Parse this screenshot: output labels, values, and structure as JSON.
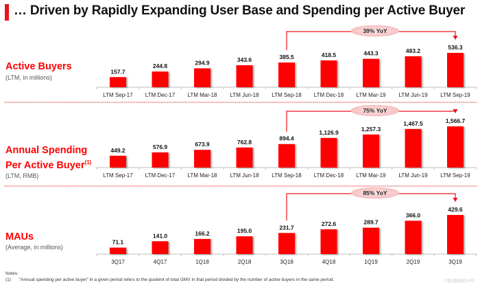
{
  "title": "… Driven by Rapidly Expanding User Base and Spending per Active Buyer",
  "chart_data": [
    {
      "type": "bar",
      "id": "active-buyers",
      "title": "Active Buyers",
      "subtitle": "(LTM, in millions)",
      "categories": [
        "LTM Sep-17",
        "LTM Dec-17",
        "LTM Mar-18",
        "LTM Jun-18",
        "LTM Sep-18",
        "LTM Dec-18",
        "LTM Mar-19",
        "LTM Jun-19",
        "LTM Sep-19"
      ],
      "values": [
        157.7,
        244.8,
        294.9,
        343.6,
        385.5,
        418.5,
        443.3,
        483.2,
        536.3
      ],
      "labels": [
        "157.7",
        "244.8",
        "294.9",
        "343.6",
        "385.5",
        "418.5",
        "443.3",
        "483.2",
        "536.3"
      ],
      "annotation": {
        "text": "39% YoY",
        "from": "LTM Sep-18",
        "to": "LTM Sep-19"
      },
      "bar_color": "#ff0000",
      "grid": false
    },
    {
      "type": "bar",
      "id": "annual-spending",
      "title": "Annual Spending Per Active Buyer",
      "title_line1": "Annual Spending",
      "title_line2": "Per Active Buyer",
      "footnote_mark": "(1)",
      "subtitle": "(LTM, RMB)",
      "categories": [
        "LTM Sep-17",
        "LTM Dec-17",
        "LTM Mar-18",
        "LTM Jun-18",
        "LTM Sep-18",
        "LTM Dec-18",
        "LTM Mar-19",
        "LTM Jun-19",
        "LTM Sep-19"
      ],
      "values": [
        449.2,
        576.9,
        673.9,
        762.8,
        894.4,
        1126.9,
        1257.3,
        1467.5,
        1566.7
      ],
      "labels": [
        "449.2",
        "576.9",
        "673.9",
        "762.8",
        "894.4",
        "1,126.9",
        "1,257.3",
        "1,467.5",
        "1,566.7"
      ],
      "annotation": {
        "text": "75% YoY",
        "from": "LTM Sep-18",
        "to": "LTM Sep-19"
      },
      "bar_color": "#ff0000",
      "grid": false
    },
    {
      "type": "bar",
      "id": "maus",
      "title": "MAUs",
      "subtitle": "(Average, in millions)",
      "categories": [
        "3Q17",
        "4Q17",
        "1Q18",
        "2Q18",
        "3Q18",
        "4Q18",
        "1Q19",
        "2Q19",
        "3Q19"
      ],
      "values": [
        71.1,
        141.0,
        166.2,
        195.0,
        231.7,
        272.6,
        289.7,
        366.0,
        429.6
      ],
      "labels": [
        "71.1",
        "141.0",
        "166.2",
        "195.0",
        "231.7",
        "272.6",
        "289.7",
        "366.0",
        "429.6"
      ],
      "annotation": {
        "text": "85% YoY",
        "from": "3Q18",
        "to": "3Q19"
      },
      "bar_color": "#ff0000",
      "grid": false
    }
  ],
  "notes": {
    "heading": "Notes:",
    "items": [
      {
        "num": "(1)",
        "text": "“Annual spending per active buyer” in a given period refers to the quotient of total GMV in that period divided by the number of active buyers in the same period."
      }
    ]
  },
  "watermark": "©智通财经APP"
}
